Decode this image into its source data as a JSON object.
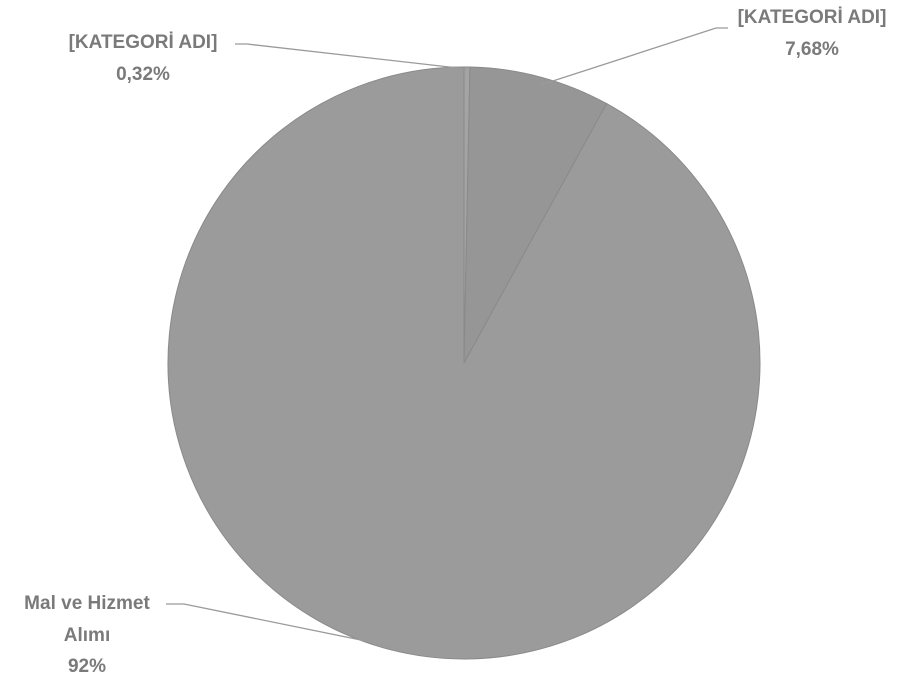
{
  "chart_data": {
    "type": "pie",
    "title": "",
    "slices": [
      {
        "category": "[KATEGORİ ADI]",
        "label_value": "0,32%",
        "value": 0.32,
        "color": "#a4a4a4"
      },
      {
        "category": "[KATEGORİ ADI]",
        "label_value": "7,68%",
        "value": 7.68,
        "color": "#969696"
      },
      {
        "category": "Mal ve Hizmet Alımı",
        "category_lines": [
          "Mal ve Hizmet",
          "Alımı"
        ],
        "label_value": "92%",
        "value": 92,
        "color": "#9b9b9b"
      }
    ],
    "start_angle": "12 o'clock",
    "direction": "clockwise",
    "legend": "none",
    "data_labels": "outside with leader lines"
  }
}
